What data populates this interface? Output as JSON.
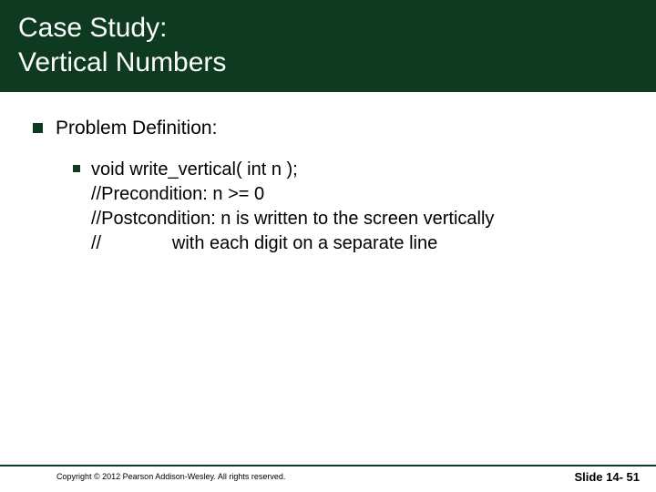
{
  "title_line1": "Case Study:",
  "title_line2": "Vertical Numbers",
  "heading": "Problem Definition:",
  "code_l1": "void write_vertical( int n );",
  "code_l2": "//Precondition:  n >= 0",
  "code_l3": "//Postcondition: n is written to the screen vertically",
  "code_l4": "//               with each digit on a separate line",
  "copyright": "Copyright © 2012 Pearson Addison-Wesley.  All rights reserved.",
  "slide": "Slide 14- 51",
  "colors": {
    "header_bg": "#0e3b1f",
    "bullet": "#0e3b1f",
    "text": "#000000",
    "bg": "#ffffff"
  },
  "fontsizes": {
    "title": 30,
    "level1": 21,
    "level2": 20,
    "copyright": 9,
    "slide": 13
  }
}
